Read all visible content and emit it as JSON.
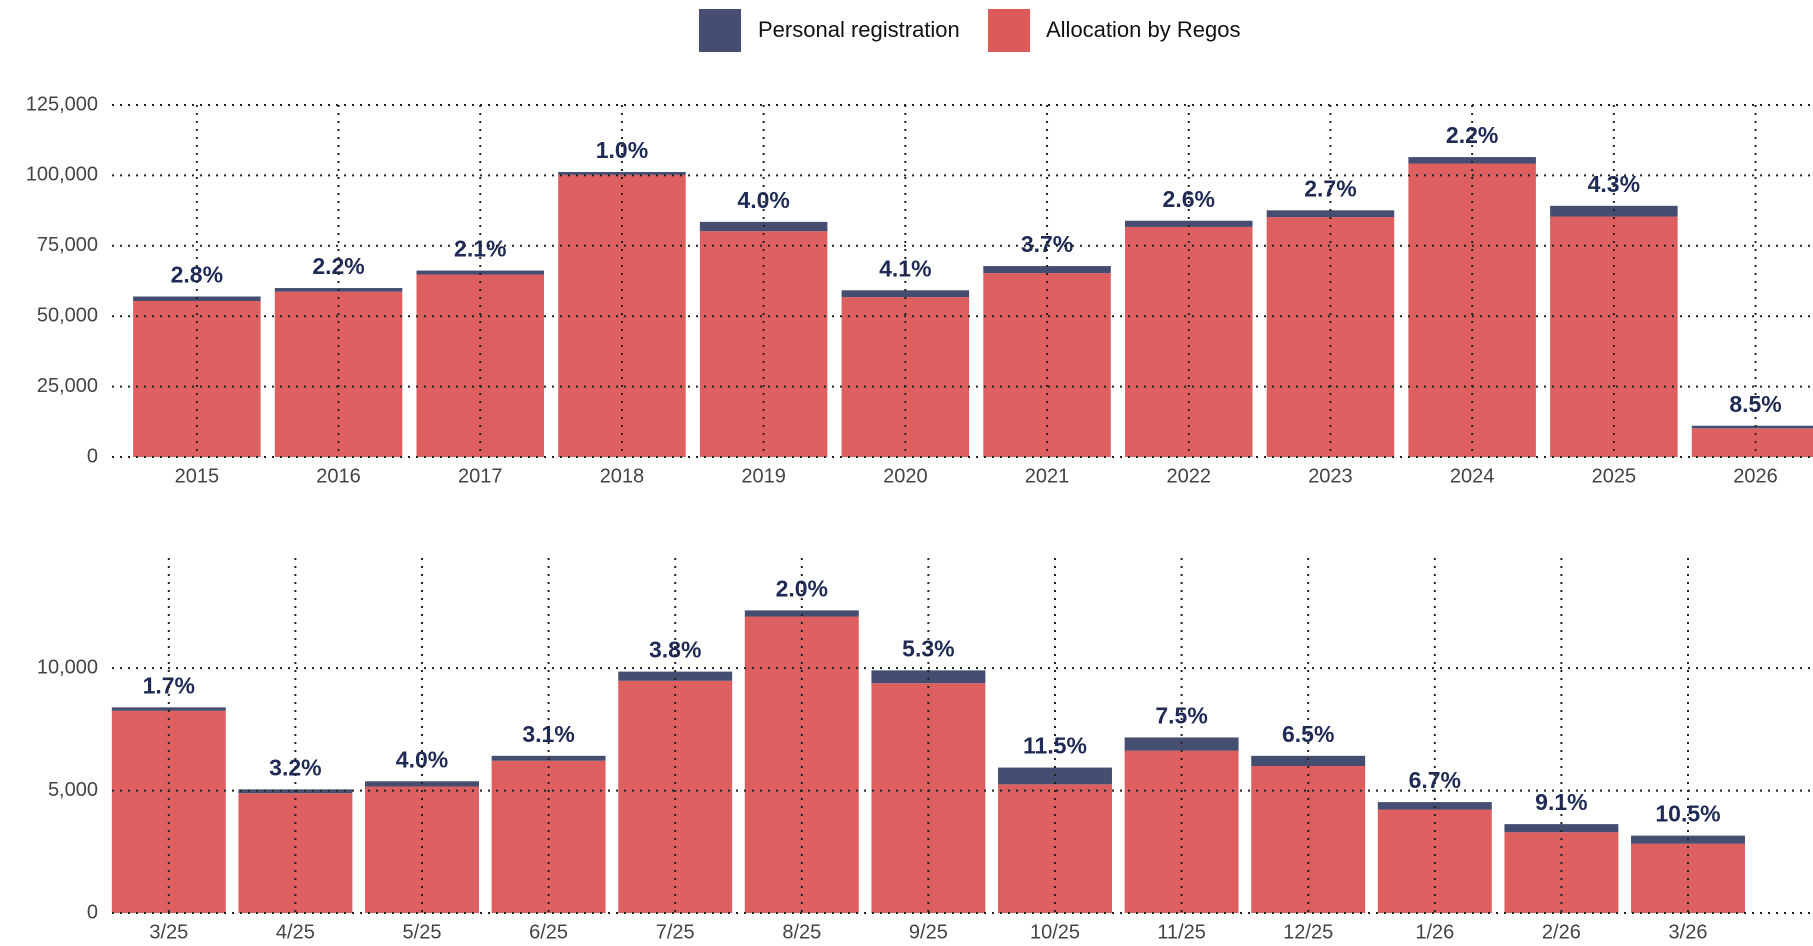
{
  "chart_data": [
    {
      "type": "stacked_bar",
      "categories": [
        "2015",
        "2016",
        "2017",
        "2018",
        "2019",
        "2020",
        "2021",
        "2022",
        "2023",
        "2024",
        "2025",
        "2026"
      ],
      "series": [
        {
          "name": "Personal registration",
          "color": "#454d70",
          "values": [
            1600,
            1300,
            1400,
            1000,
            3300,
            2400,
            2500,
            2200,
            2400,
            2300,
            3800,
            900
          ]
        },
        {
          "name": "Allocation by Regos",
          "color": "#dc5a5a",
          "values": [
            55400,
            58700,
            64800,
            100200,
            80200,
            56800,
            65300,
            81700,
            85200,
            104200,
            85400,
            10200
          ]
        }
      ],
      "annotations": [
        "2.8%",
        "2.2%",
        "2.1%",
        "1.0%",
        "4.0%",
        "4.1%",
        "3.7%",
        "2.6%",
        "2.7%",
        "2.2%",
        "4.3%",
        "8.5%"
      ],
      "ylim": [
        0,
        125000
      ],
      "yticks": [
        0,
        {
          "value": 25000,
          "label": "25,000"
        },
        {
          "value": 50000,
          "label": "50,000"
        },
        {
          "value": 75000,
          "label": "75,000"
        },
        {
          "value": 100000,
          "label": "100,000"
        },
        {
          "value": 125000,
          "label": "125,000"
        }
      ],
      "grid": true
    },
    {
      "type": "stacked_bar",
      "categories": [
        "3/25",
        "4/25",
        "5/25",
        "6/25",
        "7/25",
        "8/25",
        "9/25",
        "10/25",
        "11/25",
        "12/25",
        "1/26",
        "2/26",
        "3/26"
      ],
      "series": [
        {
          "name": "Personal registration",
          "color": "#454d70",
          "values": [
            140,
            160,
            215,
            200,
            375,
            250,
            525,
            685,
            540,
            415,
            305,
            330,
            330
          ]
        },
        {
          "name": "Allocation by Regos",
          "color": "#dc5a5a",
          "values": [
            8260,
            4890,
            5165,
            6220,
            9485,
            12110,
            9385,
            5255,
            6630,
            6005,
            4225,
            3300,
            2830
          ]
        }
      ],
      "annotations": [
        "1.7%",
        "3.2%",
        "4.0%",
        "3.1%",
        "3.8%",
        "2.0%",
        "5.3%",
        "11.5%",
        "7.5%",
        "6.5%",
        "6.7%",
        "9.1%",
        "10.5%"
      ],
      "ylim": [
        0,
        14500
      ],
      "yticks": [
        0,
        {
          "value": 5000,
          "label": "5,000"
        },
        {
          "value": 10000,
          "label": "10,000"
        }
      ],
      "grid": true
    }
  ]
}
